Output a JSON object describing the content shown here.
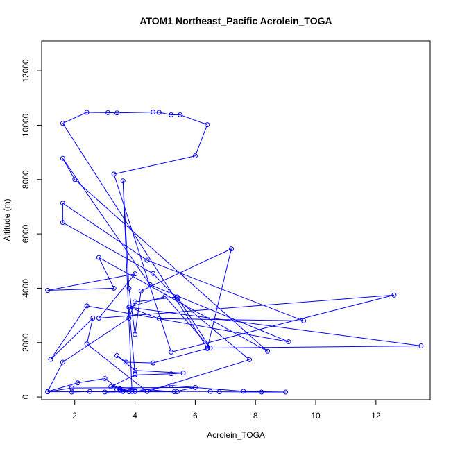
{
  "chart_data": {
    "type": "line",
    "title": "ATOM1 Northeast_Pacific Acrolein_TOGA",
    "xlabel": "Acrolein_TOGA",
    "ylabel": "Altitude (m)",
    "xlim": [
      0.9,
      13.8
    ],
    "ylim": [
      -100,
      13100
    ],
    "xticks": [
      2,
      4,
      6,
      8,
      10,
      12
    ],
    "yticks": [
      0,
      2000,
      4000,
      6000,
      8000,
      10000,
      12000
    ],
    "grid": false,
    "legend": "none",
    "series": [
      {
        "color": "#0000ff",
        "marker": "open-circle",
        "points": [
          [
            1.9,
            180
          ],
          [
            2.5,
            200
          ],
          [
            3.6,
            200
          ],
          [
            4.0,
            200
          ],
          [
            3.0,
            180
          ],
          [
            3.9,
            200
          ],
          [
            3.5,
            250
          ],
          [
            3.8,
            190
          ],
          [
            5.4,
            190
          ],
          [
            4.0,
            210
          ],
          [
            6.5,
            200
          ],
          [
            6.8,
            190
          ],
          [
            8.2,
            180
          ],
          [
            9.0,
            180
          ],
          [
            7.6,
            210
          ],
          [
            5.2,
            420
          ],
          [
            4.0,
            200
          ],
          [
            3.4,
            280
          ],
          [
            3.5,
            300
          ],
          [
            4.0,
            200
          ],
          [
            1.1,
            190
          ],
          [
            1.9,
            330
          ],
          [
            6.0,
            350
          ],
          [
            5.3,
            190
          ],
          [
            3.2,
            380
          ],
          [
            4.0,
            810
          ],
          [
            5.2,
            850
          ],
          [
            5.6,
            880
          ],
          [
            4.0,
            980
          ],
          [
            3.4,
            1520
          ],
          [
            3.7,
            1280
          ],
          [
            4.6,
            1250
          ],
          [
            6.4,
            1780
          ],
          [
            7.2,
            5450
          ],
          [
            4.2,
            3900
          ],
          [
            4.0,
            2300
          ],
          [
            3.8,
            4000
          ],
          [
            3.6,
            7950
          ],
          [
            3.9,
            210
          ],
          [
            3.6,
            220
          ],
          [
            3.5,
            280
          ],
          [
            3.0,
            680
          ],
          [
            2.1,
            520
          ],
          [
            1.1,
            200
          ],
          [
            1.6,
            1280
          ],
          [
            3.8,
            2900
          ],
          [
            4.0,
            3500
          ],
          [
            5.4,
            3680
          ],
          [
            6.5,
            1800
          ],
          [
            5.0,
            3700
          ],
          [
            3.8,
            3300
          ],
          [
            4.8,
            2880
          ],
          [
            9.6,
            2800
          ],
          [
            4.4,
            5030
          ],
          [
            1.6,
            7130
          ],
          [
            1.6,
            6420
          ],
          [
            4.6,
            4540
          ],
          [
            5.4,
            3600
          ],
          [
            7.8,
            1370
          ],
          [
            4.4,
            200
          ],
          [
            2.4,
            1950
          ],
          [
            2.6,
            2900
          ],
          [
            1.2,
            1380
          ],
          [
            2.4,
            3350
          ],
          [
            9.1,
            2030
          ],
          [
            4.5,
            4130
          ],
          [
            1.6,
            8780
          ],
          [
            2.0,
            8000
          ],
          [
            8.4,
            1680
          ],
          [
            2.8,
            5130
          ],
          [
            3.3,
            4000
          ],
          [
            1.1,
            3920
          ],
          [
            4.0,
            4530
          ],
          [
            2.8,
            2900
          ],
          [
            12.6,
            3750
          ],
          [
            5.2,
            1650
          ],
          [
            3.3,
            8200
          ],
          [
            6.0,
            8870
          ],
          [
            6.4,
            10020
          ],
          [
            5.5,
            10380
          ],
          [
            5.2,
            10380
          ],
          [
            4.8,
            10470
          ],
          [
            4.6,
            10480
          ],
          [
            3.4,
            10450
          ],
          [
            3.1,
            10460
          ],
          [
            2.4,
            10470
          ],
          [
            1.6,
            10070
          ],
          [
            6.4,
            1800
          ],
          [
            13.5,
            1880
          ],
          [
            3.8,
            3300
          ],
          [
            4.0,
            850
          ]
        ]
      }
    ]
  }
}
